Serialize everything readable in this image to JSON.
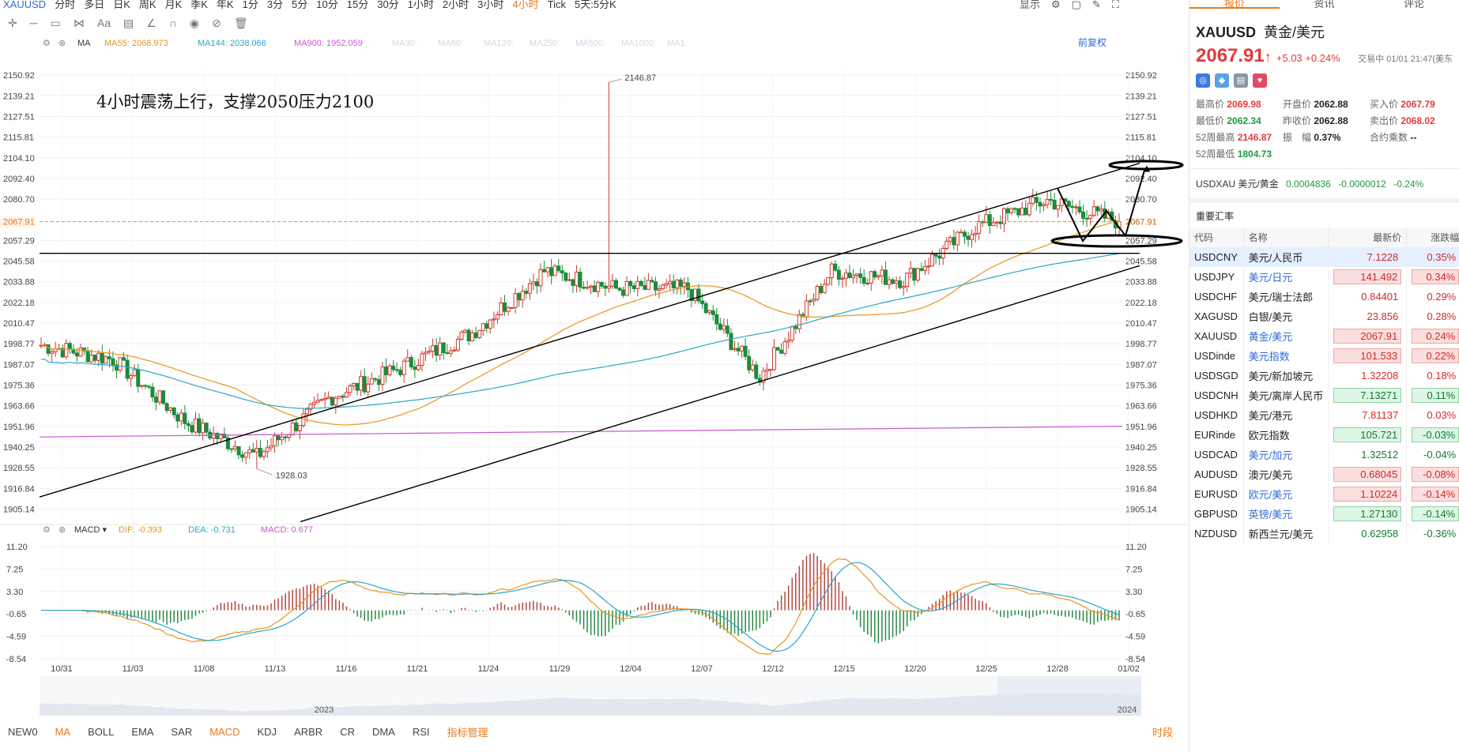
{
  "topbar": {
    "symbol": "XAUUSD",
    "periods": [
      "分时",
      "多日",
      "日K",
      "周K",
      "月K",
      "季K",
      "年K",
      "1分",
      "3分",
      "5分",
      "10分",
      "15分",
      "30分",
      "1小时",
      "2小时",
      "3小时",
      "4小时",
      "Tick"
    ],
    "active_period": "4小时",
    "multi": "5天:5分K",
    "display": "显示"
  },
  "indicator_bar": {
    "ma_name": "MA",
    "ma55": "MA55: 2068.973",
    "ma144": "MA144: 2038.066",
    "ma900": "MA900: 1952.059",
    "inactive": [
      "MA30:",
      "MA60:",
      "MA120:",
      "MA250:",
      "MA500:",
      "MA1000:",
      "MA1:"
    ],
    "adjust": "前复权"
  },
  "macd_bar": {
    "name": "MACD",
    "dif": "DIF: -0.393",
    "dea": "DEA: -0.731",
    "macd": "MACD: 0.677"
  },
  "annotation": "4小时震荡上行，支撑2050压力2100",
  "price_axis": [
    "2150.92",
    "2139.21",
    "2127.51",
    "2115.81",
    "2104.10",
    "2092.40",
    "2080.70",
    "2067.91",
    "2057.29",
    "2045.58",
    "2033.88",
    "2022.18",
    "2010.47",
    "1998.77",
    "1987.07",
    "1975.36",
    "1963.66",
    "1951.96",
    "1940.25",
    "1928.55",
    "1916.84",
    "1905.14"
  ],
  "macd_axis": [
    "11.20",
    "7.25",
    "3.30",
    "-0.65",
    "-4.59",
    "-8.54"
  ],
  "date_axis": [
    "10/31",
    "11/03",
    "11/08",
    "11/13",
    "11/16",
    "11/21",
    "11/24",
    "11/29",
    "12/04",
    "12/07",
    "12/12",
    "12/15",
    "12/20",
    "12/25",
    "12/28",
    "01/02"
  ],
  "navigator_years": [
    "2023",
    "2024"
  ],
  "labels": {
    "high": "2146.87",
    "low": "1928.03",
    "current": "2067.91"
  },
  "bottombar": {
    "items": [
      "NEW0",
      "MA",
      "BOLL",
      "EMA",
      "SAR",
      "MACD",
      "KDJ",
      "ARBR",
      "CR",
      "DMA",
      "RSI",
      "指标管理"
    ],
    "active": [
      "MA",
      "MACD",
      "指标管理"
    ],
    "right": "时段"
  },
  "right_panel": {
    "tabs": [
      "报价",
      "资讯",
      "评论"
    ],
    "title": "XAUUSD",
    "subtitle": "黄金/美元",
    "price": "2067.91",
    "arrow": "↑",
    "change": "+5.03  +0.24%",
    "status": "交易中 01/01 21:47(美东",
    "stats": [
      {
        "label": "最高价",
        "value": "2069.98",
        "cls": "red"
      },
      {
        "label": "开盘价",
        "value": "2062.88",
        "cls": "blk"
      },
      {
        "label": "买入价",
        "value": "2067.79",
        "cls": "red"
      },
      {
        "label": "最低价",
        "value": "2062.34",
        "cls": "grn"
      },
      {
        "label": "昨收价",
        "value": "2062.88",
        "cls": "blk"
      },
      {
        "label": "卖出价",
        "value": "2068.02",
        "cls": "red"
      },
      {
        "label": "52周最高",
        "value": "2146.87",
        "cls": "red"
      },
      {
        "label": "振　幅",
        "value": "0.37%",
        "cls": "blk"
      },
      {
        "label": "合约乘数",
        "value": "--",
        "cls": "blk"
      },
      {
        "label": "52周最低",
        "value": "1804.73",
        "cls": "grn"
      }
    ],
    "cross": {
      "code": "USDXAU",
      "name": "美元/黄金",
      "price": "0.0004836",
      "chg": "-0.0000012",
      "pct": "-0.24%"
    },
    "section": "重要汇率",
    "columns": [
      "代码",
      "名称",
      "最新价",
      "涨跌幅"
    ],
    "rates": [
      {
        "code": "USDCNY",
        "name": "美元/人民币",
        "price": "7.1228",
        "pct": "0.35%",
        "dir": "up",
        "box": false,
        "blue": false,
        "sel": true
      },
      {
        "code": "USDJPY",
        "name": "美元/日元",
        "price": "141.492",
        "pct": "0.34%",
        "dir": "up",
        "box": true,
        "blue": true,
        "sel": false
      },
      {
        "code": "USDCHF",
        "name": "美元/瑞士法郎",
        "price": "0.84401",
        "pct": "0.29%",
        "dir": "up",
        "box": false,
        "blue": false,
        "sel": false
      },
      {
        "code": "XAGUSD",
        "name": "白银/美元",
        "price": "23.856",
        "pct": "0.28%",
        "dir": "up",
        "box": false,
        "blue": false,
        "sel": false
      },
      {
        "code": "XAUUSD",
        "name": "黄金/美元",
        "price": "2067.91",
        "pct": "0.24%",
        "dir": "up",
        "box": true,
        "blue": true,
        "sel": false
      },
      {
        "code": "USDinde",
        "name": "美元指数",
        "price": "101.533",
        "pct": "0.22%",
        "dir": "up",
        "box": true,
        "blue": true,
        "sel": false
      },
      {
        "code": "USDSGD",
        "name": "美元/新加坡元",
        "price": "1.32208",
        "pct": "0.18%",
        "dir": "up",
        "box": false,
        "blue": false,
        "sel": false
      },
      {
        "code": "USDCNH",
        "name": "美元/离岸人民币",
        "price": "7.13271",
        "pct": "0.11%",
        "dir": "dn",
        "box": true,
        "blue": false,
        "sel": false
      },
      {
        "code": "USDHKD",
        "name": "美元/港元",
        "price": "7.81137",
        "pct": "0.03%",
        "dir": "up",
        "box": false,
        "blue": false,
        "sel": false
      },
      {
        "code": "EURinde",
        "name": "欧元指数",
        "price": "105.721",
        "pct": "-0.03%",
        "dir": "dn",
        "box": true,
        "blue": false,
        "sel": false
      },
      {
        "code": "USDCAD",
        "name": "美元/加元",
        "price": "1.32512",
        "pct": "-0.04%",
        "dir": "dn",
        "box": false,
        "blue": true,
        "sel": false
      },
      {
        "code": "AUDUSD",
        "name": "澳元/美元",
        "price": "0.68045",
        "pct": "-0.08%",
        "dir": "up",
        "box": true,
        "blue": false,
        "sel": false
      },
      {
        "code": "EURUSD",
        "name": "欧元/美元",
        "price": "1.10224",
        "pct": "-0.14%",
        "dir": "up",
        "box": true,
        "blue": true,
        "sel": false
      },
      {
        "code": "GBPUSD",
        "name": "英镑/美元",
        "price": "1.27130",
        "pct": "-0.14%",
        "dir": "dn",
        "box": true,
        "blue": true,
        "sel": false
      },
      {
        "code": "NZDUSD",
        "name": "新西兰元/美元",
        "price": "0.62958",
        "pct": "-0.36%",
        "dir": "dn",
        "box": false,
        "blue": false,
        "sel": false
      }
    ]
  },
  "colors": {
    "up": "#e23a3a",
    "down": "#1e9a3c",
    "accent": "#e8791c",
    "ma55": "#e8951c",
    "ma144": "#2aa7c9",
    "ma900": "#c85ad0"
  },
  "chart_data": {
    "type": "candlestick",
    "title": "4小时震荡上行，支撑2050压力2100",
    "x": [
      "10/31",
      "11/03",
      "11/08",
      "11/13",
      "11/16",
      "11/21",
      "11/24",
      "11/29",
      "12/04",
      "12/07",
      "12/12",
      "12/15",
      "12/20",
      "12/25",
      "12/28",
      "01/02"
    ],
    "close_approx": [
      1998,
      1990,
      1955,
      1935,
      1968,
      1985,
      2005,
      2040,
      2030,
      2030,
      1980,
      2040,
      2035,
      2065,
      2080,
      2067.91
    ],
    "ylim": [
      1900,
      2155
    ],
    "high": 2146.87,
    "low": 1928.03,
    "support": 2050,
    "resistance": 2100,
    "series": [
      {
        "name": "MA55",
        "value": 2068.973
      },
      {
        "name": "MA144",
        "value": 2038.066
      },
      {
        "name": "MA900",
        "value": 1952.059
      }
    ],
    "macd": {
      "dif": -0.393,
      "dea": -0.731,
      "macd": 0.677,
      "ylim": [
        -8.54,
        11.2
      ]
    }
  }
}
